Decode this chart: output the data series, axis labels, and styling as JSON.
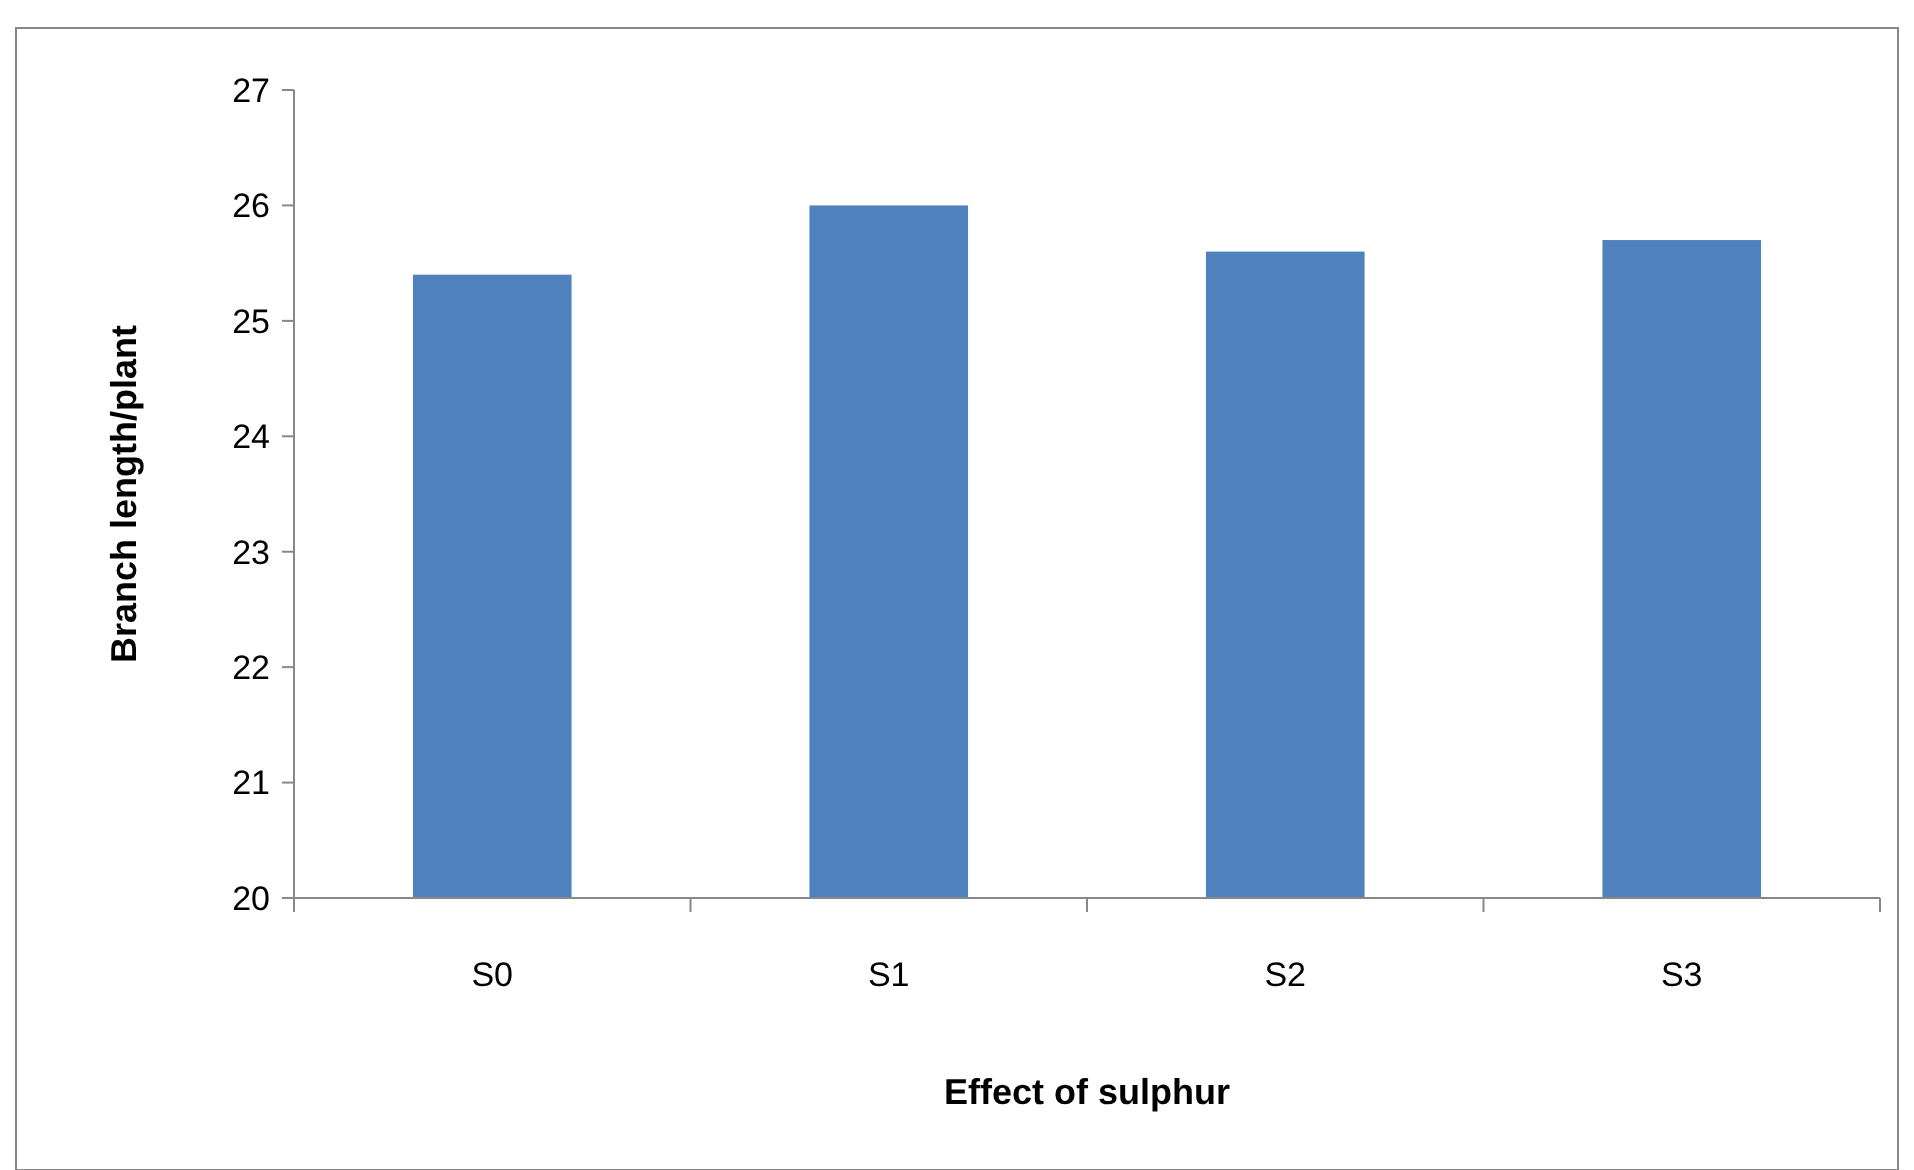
{
  "chart_data": {
    "type": "bar",
    "xlabel": "Effect of sulphur",
    "ylabel": "Branch length/plant",
    "categories": [
      "S0",
      "S1",
      "S2",
      "S3"
    ],
    "values": [
      25.4,
      26.0,
      25.6,
      25.7
    ],
    "color": "#4f81bd",
    "ylim": [
      20,
      27
    ],
    "yticks": [
      20,
      21,
      22,
      23,
      24,
      25,
      26,
      27
    ]
  }
}
